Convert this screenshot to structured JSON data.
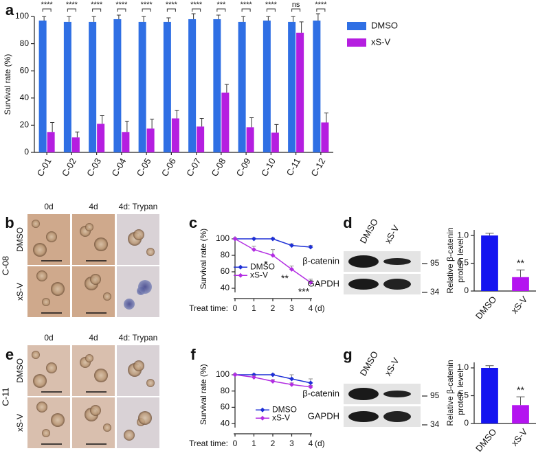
{
  "panel_letters": [
    "a",
    "b",
    "c",
    "d",
    "e",
    "f",
    "g"
  ],
  "chart_data": [
    {
      "type": "grouped-bar",
      "ylabel": "Survival rate (%)",
      "categories": [
        "C-01",
        "C-02",
        "C-03",
        "C-04",
        "C-05",
        "C-06",
        "C-07",
        "C-08",
        "C-09",
        "C-10",
        "C-11",
        "C-12"
      ],
      "series": [
        {
          "name": "DMSO",
          "color": "#2f6fe4",
          "values": [
            97,
            96,
            96,
            98,
            96,
            96,
            98,
            98,
            96,
            97,
            96,
            97
          ],
          "errors": [
            3,
            4,
            4,
            3,
            4,
            3,
            4,
            3,
            4,
            3,
            4,
            5
          ]
        },
        {
          "name": "xS-V",
          "color": "#b51ee0",
          "values": [
            15,
            11,
            21,
            15,
            17.5,
            25,
            19,
            44,
            18.5,
            14.5,
            88,
            22
          ],
          "errors": [
            7,
            4,
            6,
            8,
            7,
            6,
            6,
            6,
            7,
            6,
            8,
            7
          ]
        }
      ],
      "significance": [
        "****",
        "****",
        "****",
        "****",
        "****",
        "****",
        "****",
        "***",
        "****",
        "****",
        "ns",
        "****"
      ],
      "ylim": [
        0,
        100
      ],
      "yticks": [
        0,
        20,
        40,
        60,
        80,
        100
      ],
      "legend": "upper right"
    },
    {
      "type": "line",
      "ylabel": "Survival rate (%)",
      "xlabel": "Treat time:",
      "xunit": "(d)",
      "x": [
        0,
        1,
        2,
        3,
        4
      ],
      "xlim": [
        0,
        4
      ],
      "xticks": [
        0,
        1,
        2,
        3,
        4
      ],
      "series": [
        {
          "name": "DMSO",
          "color": "#1d2fd6",
          "values": [
            100,
            100,
            100,
            92,
            90
          ],
          "errors": [
            1,
            1,
            1,
            2,
            2
          ]
        },
        {
          "name": "xS-V",
          "color": "#b22de2",
          "values": [
            100,
            87,
            80,
            63,
            47
          ],
          "errors": [
            1,
            4,
            7,
            4,
            4
          ]
        }
      ],
      "significance": [
        null,
        null,
        "*",
        "**",
        "***"
      ],
      "ylim": [
        35,
        103
      ],
      "yticks": [
        40,
        60,
        80,
        100
      ],
      "legend": "lower left"
    },
    {
      "type": "bar",
      "ylabel": [
        "Relative β-catenin",
        "protein level"
      ],
      "categories": [
        "DMSO",
        "xS-V"
      ],
      "values": [
        1,
        0.25
      ],
      "errors": [
        0.04,
        0.13
      ],
      "colors": [
        "#1414f0",
        "#b414f0"
      ],
      "significance": [
        null,
        "**"
      ],
      "ylim": [
        0,
        1.1
      ],
      "yticks": [
        0,
        0.5,
        {
          "value": 1,
          "label": "1.0"
        }
      ]
    },
    {
      "type": "line",
      "ylabel": "Survival rate (%)",
      "xlabel": "Treat time:",
      "xunit": "(d)",
      "x": [
        0,
        1,
        2,
        3,
        4
      ],
      "xlim": [
        0,
        4
      ],
      "xticks": [
        0,
        1,
        2,
        3,
        4
      ],
      "series": [
        {
          "name": "DMSO",
          "color": "#1d2fd6",
          "values": [
            100,
            100,
            100,
            95,
            90
          ],
          "errors": [
            1,
            1,
            1,
            5,
            5
          ]
        },
        {
          "name": "xS-V",
          "color": "#b22de2",
          "values": [
            100,
            97,
            92,
            88,
            85
          ],
          "errors": [
            1,
            2,
            2,
            2,
            2
          ]
        }
      ],
      "ylim": [
        35,
        103
      ],
      "yticks": [
        40,
        60,
        80,
        100
      ],
      "legend": "lower left"
    },
    {
      "type": "bar",
      "ylabel": [
        "Relative β-catenin",
        "protein level"
      ],
      "categories": [
        "DMSO",
        "xS-V"
      ],
      "values": [
        1,
        0.33
      ],
      "errors": [
        0.04,
        0.15
      ],
      "colors": [
        "#1414f0",
        "#b414f0"
      ],
      "significance": [
        null,
        "**"
      ],
      "ylim": [
        0,
        1.1
      ],
      "yticks": [
        0,
        0.5,
        {
          "value": 1,
          "label": "1.0"
        }
      ]
    }
  ],
  "panels": {
    "b": {
      "sample": "C-08",
      "columns": [
        "0d",
        "4d",
        "4d: Trypan"
      ],
      "rows": [
        "DMSO",
        "xS-V"
      ]
    },
    "e": {
      "sample": "C-11",
      "columns": [
        "0d",
        "4d",
        "4d: Trypan"
      ],
      "rows": [
        "DMSO",
        "xS-V"
      ]
    },
    "d": {
      "columns": [
        "DMSO",
        "xS-V"
      ],
      "bands": [
        "β-catenin",
        "GAPDH"
      ],
      "markers": [
        "95",
        "34"
      ]
    },
    "g": {
      "columns": [
        "DMSO",
        "xS-V"
      ],
      "bands": [
        "β-catenin",
        "GAPDH"
      ],
      "markers": [
        "95",
        "34"
      ]
    }
  }
}
